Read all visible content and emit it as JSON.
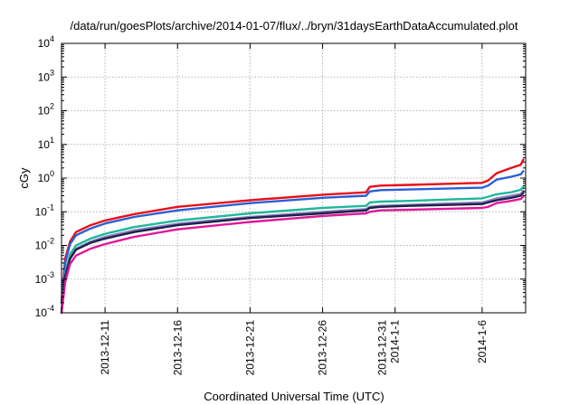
{
  "chart_data": {
    "type": "line",
    "title": "/data/run/goesPlots/archive/2014-01-07/flux/../bryn/31daysEarthDataAccumulated.plot",
    "xlabel": "Coordinated Universal Time (UTC)",
    "ylabel": "cGy",
    "yscale": "log",
    "ylim": [
      0.0001,
      10000
    ],
    "xlim": [
      "2013-12-08",
      "2014-01-09"
    ],
    "grid": true,
    "legend": "none",
    "y_ticks": [
      {
        "value": 0.0001,
        "base": "10",
        "exp": "-4"
      },
      {
        "value": 0.001,
        "base": "10",
        "exp": "-3"
      },
      {
        "value": 0.01,
        "base": "10",
        "exp": "-2"
      },
      {
        "value": 0.1,
        "base": "10",
        "exp": "-1"
      },
      {
        "value": 1,
        "base": "10",
        "exp": "0"
      },
      {
        "value": 10,
        "base": "10",
        "exp": "1"
      },
      {
        "value": 100,
        "base": "10",
        "exp": "2"
      },
      {
        "value": 1000,
        "base": "10",
        "exp": "3"
      },
      {
        "value": 10000,
        "base": "10",
        "exp": "4"
      }
    ],
    "x_ticks": [
      {
        "date": "2013-12-11",
        "lines": [
          "2013-12-11"
        ]
      },
      {
        "date": "2013-12-16",
        "lines": [
          "2013-12-16"
        ]
      },
      {
        "date": "2013-12-21",
        "lines": [
          "2013-12-21"
        ]
      },
      {
        "date": "2013-12-26",
        "lines": [
          "2013-12-26"
        ]
      },
      {
        "date": "2013-12-31",
        "lines": [
          "2013-12-31",
          "2014-1-1"
        ]
      },
      {
        "date": "2014-01-06",
        "lines": [
          "2014-1-6"
        ]
      }
    ],
    "series": [
      {
        "color": "#e8101a",
        "x": [
          "2013-12-08T00:00",
          "2013-12-08T06:00",
          "2013-12-08T14:00",
          "2013-12-09T00:00",
          "2013-12-10T00:00",
          "2013-12-11T00:00",
          "2013-12-13T00:00",
          "2013-12-16T00:00",
          "2013-12-21T00:00",
          "2013-12-26T00:00",
          "2013-12-29T00:00",
          "2013-12-29T06:00",
          "2013-12-30T00:00",
          "2014-01-01T00:00",
          "2014-01-06T00:00",
          "2014-01-06T10:00",
          "2014-01-07T00:00",
          "2014-01-08T00:00",
          "2014-01-08T16:00",
          "2014-01-08T20:00"
        ],
        "y": [
          0.0002,
          0.004,
          0.013,
          0.025,
          0.04,
          0.055,
          0.085,
          0.14,
          0.22,
          0.32,
          0.38,
          0.55,
          0.6,
          0.63,
          0.72,
          0.85,
          1.4,
          2.0,
          2.5,
          3.5
        ]
      },
      {
        "color": "#2a5fd6",
        "x": [
          "2013-12-08T00:00",
          "2013-12-08T06:00",
          "2013-12-08T14:00",
          "2013-12-09T00:00",
          "2013-12-10T00:00",
          "2013-12-11T00:00",
          "2013-12-13T00:00",
          "2013-12-16T00:00",
          "2013-12-21T00:00",
          "2013-12-26T00:00",
          "2013-12-29T00:00",
          "2013-12-29T06:00",
          "2013-12-30T00:00",
          "2014-01-01T00:00",
          "2014-01-06T00:00",
          "2014-01-06T10:00",
          "2014-01-07T00:00",
          "2014-01-08T00:00",
          "2014-01-08T16:00",
          "2014-01-08T20:00"
        ],
        "y": [
          0.0002,
          0.003,
          0.011,
          0.02,
          0.032,
          0.045,
          0.07,
          0.11,
          0.18,
          0.26,
          0.3,
          0.4,
          0.44,
          0.46,
          0.52,
          0.6,
          0.9,
          1.1,
          1.3,
          1.6
        ]
      },
      {
        "color": "#1fb89a",
        "x": [
          "2013-12-08T00:00",
          "2013-12-08T06:00",
          "2013-12-08T14:00",
          "2013-12-09T00:00",
          "2013-12-10T00:00",
          "2013-12-11T00:00",
          "2013-12-13T00:00",
          "2013-12-16T00:00",
          "2013-12-21T00:00",
          "2013-12-26T00:00",
          "2013-12-29T00:00",
          "2013-12-29T06:00",
          "2013-12-30T00:00",
          "2014-01-01T00:00",
          "2014-01-06T00:00",
          "2014-01-06T10:00",
          "2014-01-07T00:00",
          "2014-01-08T00:00",
          "2014-01-08T16:00",
          "2014-01-08T20:00"
        ],
        "y": [
          0.0001,
          0.0015,
          0.0055,
          0.01,
          0.016,
          0.022,
          0.035,
          0.055,
          0.09,
          0.13,
          0.15,
          0.19,
          0.2,
          0.21,
          0.25,
          0.28,
          0.33,
          0.38,
          0.45,
          0.55
        ]
      },
      {
        "color": "#8a7fc0",
        "x": [
          "2013-12-08T00:00",
          "2013-12-08T06:00",
          "2013-12-08T14:00",
          "2013-12-09T00:00",
          "2013-12-10T00:00",
          "2013-12-11T00:00",
          "2013-12-13T00:00",
          "2013-12-16T00:00",
          "2013-12-21T00:00",
          "2013-12-26T00:00",
          "2013-12-29T00:00",
          "2013-12-29T06:00",
          "2013-12-30T00:00",
          "2014-01-01T00:00",
          "2014-01-06T00:00",
          "2014-01-06T10:00",
          "2014-01-07T00:00",
          "2014-01-08T00:00",
          "2014-01-08T16:00",
          "2014-01-08T20:00"
        ],
        "y": [
          0.0001,
          0.0013,
          0.0045,
          0.008,
          0.013,
          0.018,
          0.028,
          0.044,
          0.07,
          0.1,
          0.12,
          0.14,
          0.15,
          0.16,
          0.19,
          0.21,
          0.25,
          0.3,
          0.34,
          0.42
        ]
      },
      {
        "color": "#20204a",
        "x": [
          "2013-12-08T00:00",
          "2013-12-08T06:00",
          "2013-12-08T14:00",
          "2013-12-09T00:00",
          "2013-12-10T00:00",
          "2013-12-11T00:00",
          "2013-12-13T00:00",
          "2013-12-16T00:00",
          "2013-12-21T00:00",
          "2013-12-26T00:00",
          "2013-12-29T00:00",
          "2013-12-29T06:00",
          "2013-12-30T00:00",
          "2014-01-01T00:00",
          "2014-01-06T00:00",
          "2014-01-06T10:00",
          "2014-01-07T00:00",
          "2014-01-08T00:00",
          "2014-01-08T16:00",
          "2014-01-08T20:00"
        ],
        "y": [
          0.0001,
          0.0012,
          0.004,
          0.0075,
          0.012,
          0.016,
          0.025,
          0.04,
          0.065,
          0.09,
          0.11,
          0.13,
          0.14,
          0.15,
          0.17,
          0.19,
          0.22,
          0.26,
          0.3,
          0.36
        ]
      },
      {
        "color": "#e0189a",
        "x": [
          "2013-12-08T00:00",
          "2013-12-08T06:00",
          "2013-12-08T14:00",
          "2013-12-09T00:00",
          "2013-12-10T00:00",
          "2013-12-11T00:00",
          "2013-12-13T00:00",
          "2013-12-16T00:00",
          "2013-12-21T00:00",
          "2013-12-26T00:00",
          "2013-12-29T00:00",
          "2013-12-29T06:00",
          "2013-12-30T00:00",
          "2014-01-01T00:00",
          "2014-01-06T00:00",
          "2014-01-06T10:00",
          "2014-01-07T00:00",
          "2014-01-08T00:00",
          "2014-01-08T16:00",
          "2014-01-08T20:00"
        ],
        "y": [
          0.0001,
          0.0008,
          0.0028,
          0.005,
          0.008,
          0.011,
          0.018,
          0.03,
          0.05,
          0.075,
          0.09,
          0.1,
          0.11,
          0.115,
          0.13,
          0.14,
          0.18,
          0.21,
          0.24,
          0.28
        ]
      }
    ]
  }
}
